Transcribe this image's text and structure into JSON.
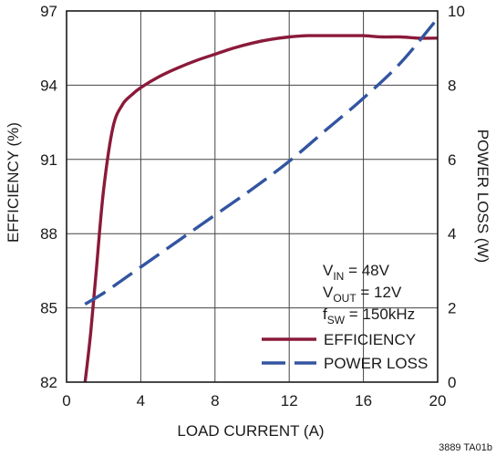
{
  "chart_data": {
    "type": "line",
    "xlabel": "LOAD CURRENT (A)",
    "ylabel": "EFFICIENCY (%)",
    "y2label": "POWER LOSS (W)",
    "xlim": [
      0,
      20
    ],
    "ylim": [
      82,
      97
    ],
    "y2lim": [
      0,
      10
    ],
    "x_ticks": [
      "0",
      "4",
      "8",
      "12",
      "16",
      "20"
    ],
    "y_ticks": [
      "82",
      "85",
      "88",
      "91",
      "94",
      "97"
    ],
    "y2_ticks": [
      "0",
      "2",
      "4",
      "6",
      "8",
      "10"
    ],
    "grid": true,
    "legend_position": "bottom-right",
    "annotations": [
      {
        "main": "V",
        "sub": "IN",
        "rest": " = 48V"
      },
      {
        "main": "V",
        "sub": "OUT",
        "rest": " = 12V"
      },
      {
        "main": "f",
        "sub": "SW",
        "rest": " = 150kHz"
      }
    ],
    "series": [
      {
        "name": "EFFICIENCY",
        "axis": "left",
        "color": "#8b1a3a",
        "style": "solid",
        "x": [
          1.0,
          1.3,
          1.6,
          2.0,
          2.5,
          3.0,
          3.5,
          4.0,
          5.0,
          6.0,
          7.0,
          8.0,
          9.0,
          10.0,
          11.0,
          12.0,
          13.0,
          14.0,
          15.0,
          16.0,
          17.0,
          18.0,
          19.0,
          20.0
        ],
        "y": [
          82.0,
          84.0,
          86.5,
          89.8,
          92.3,
          93.2,
          93.6,
          93.9,
          94.35,
          94.7,
          95.0,
          95.25,
          95.5,
          95.7,
          95.85,
          95.95,
          96.0,
          96.0,
          96.0,
          96.0,
          95.95,
          95.95,
          95.9,
          95.9
        ]
      },
      {
        "name": "POWER LOSS",
        "axis": "right",
        "color": "#3355a0",
        "style": "dashed",
        "x": [
          1.0,
          2.0,
          3.0,
          4.0,
          6.0,
          8.0,
          10.0,
          12.0,
          14.0,
          16.0,
          18.0,
          20.0
        ],
        "y": [
          2.1,
          2.4,
          2.75,
          3.1,
          3.8,
          4.5,
          5.2,
          5.95,
          6.8,
          7.65,
          8.6,
          9.8
        ]
      }
    ],
    "figure_code": "3889 TA01b"
  }
}
